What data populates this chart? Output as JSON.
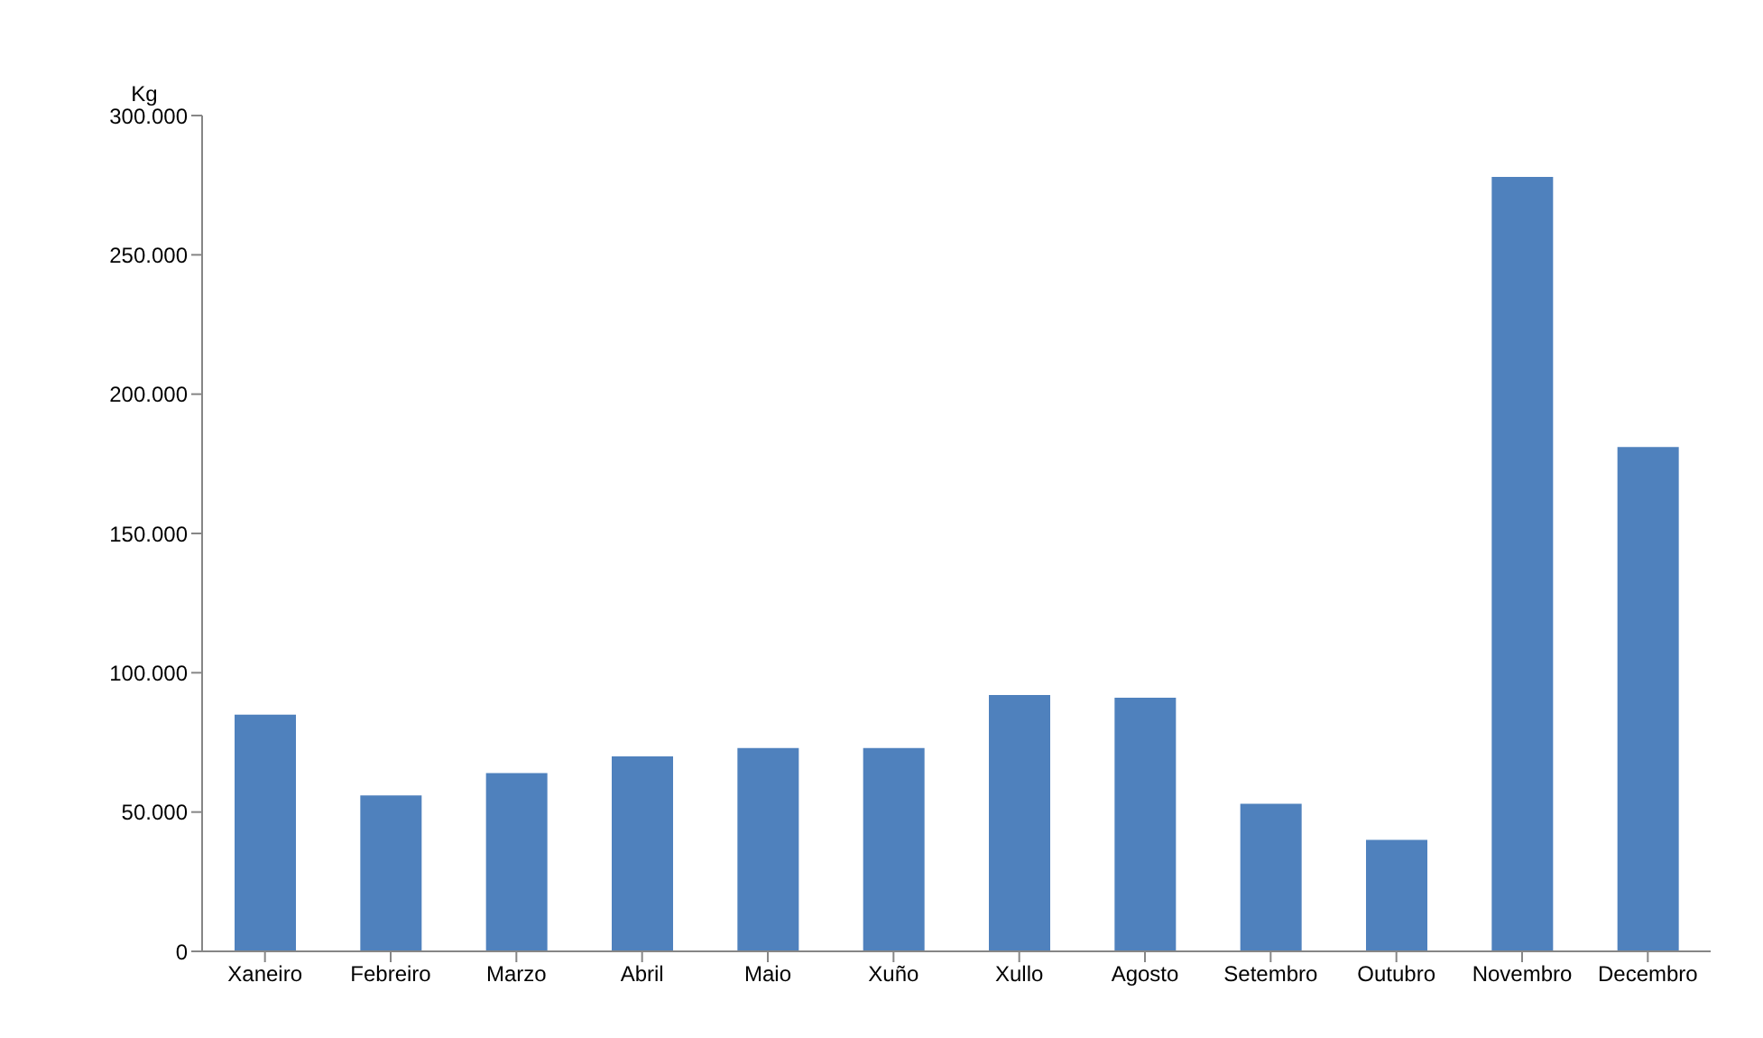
{
  "chart_data": {
    "type": "bar",
    "ylabel": "Kg",
    "categories": [
      "Xaneiro",
      "Febreiro",
      "Marzo",
      "Abril",
      "Maio",
      "Xuño",
      "Xullo",
      "Agosto",
      "Setembro",
      "Outubro",
      "Novembro",
      "Decembro"
    ],
    "values": [
      85000,
      56000,
      64000,
      70000,
      73000,
      73000,
      92000,
      91000,
      53000,
      40000,
      278000,
      181000
    ],
    "color": "#4f81bd",
    "ylim": [
      0,
      300000
    ],
    "yticks": [
      0,
      {
        "value": 50000,
        "label": "50.000"
      },
      {
        "value": 100000,
        "label": "100.000"
      },
      {
        "value": 150000,
        "label": "150.000"
      },
      {
        "value": 200000,
        "label": "200.000"
      },
      {
        "value": 250000,
        "label": "250.000"
      },
      {
        "value": 300000,
        "label": "300.000"
      }
    ],
    "grid": false
  }
}
